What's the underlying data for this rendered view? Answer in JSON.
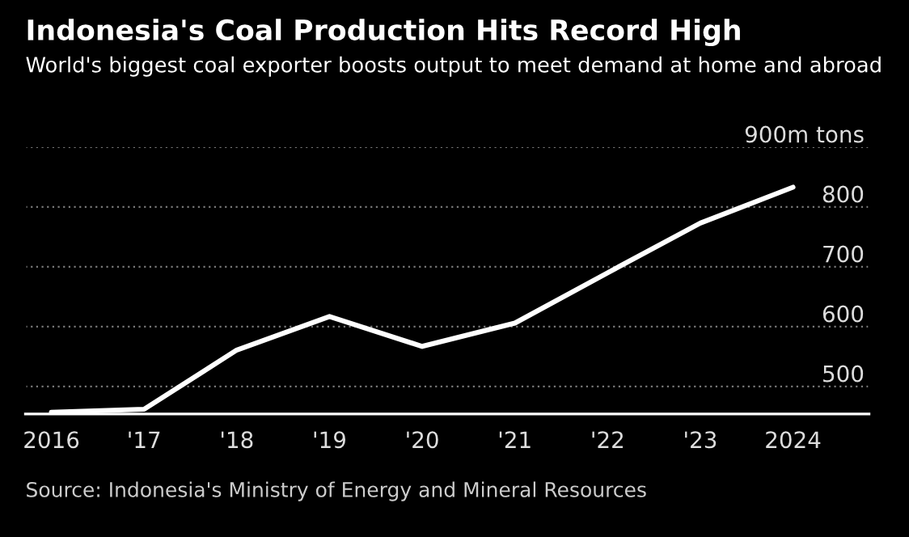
{
  "chart_data": {
    "type": "line",
    "title": "Indonesia's Coal Production Hits Record High",
    "subtitle": "World's biggest coal exporter boosts output to meet demand at home and abroad",
    "categories": [
      "2016",
      "'17",
      "'18",
      "'19",
      "'20",
      "'21",
      "'22",
      "'23",
      "2024"
    ],
    "series": [
      {
        "color": "#ffffff",
        "values": [
          457,
          462,
          561,
          617,
          567,
          606,
          690,
          773,
          833
        ]
      }
    ],
    "ylim": [
      454,
      900
    ],
    "yticks": [
      500,
      600,
      700,
      800,
      {
        "value": 900,
        "label": "900m tons"
      }
    ],
    "grid": "y",
    "marker": "none",
    "line_style": "solid",
    "legend": false,
    "annotations": [
      "Source: Indonesia's Ministry of Energy and Mineral Resources"
    ]
  }
}
